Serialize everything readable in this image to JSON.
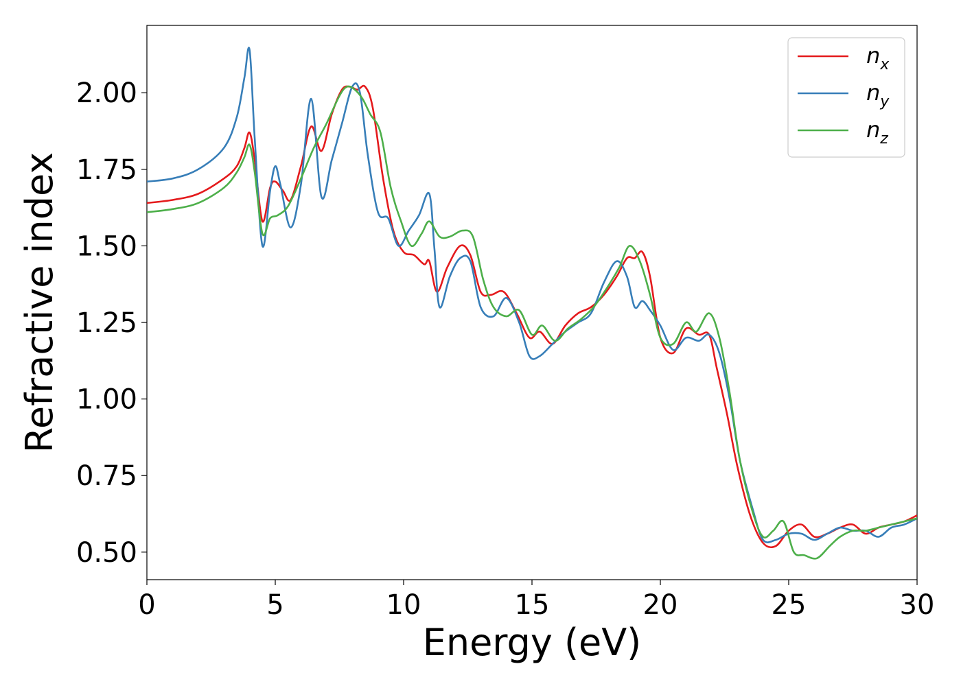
{
  "chart_data": {
    "type": "line",
    "xlabel": "Energy (eV)",
    "ylabel": "Refractive index",
    "xlim": [
      0,
      30
    ],
    "ylim": [
      0.41,
      2.22
    ],
    "xticks": [
      0,
      5,
      10,
      15,
      20,
      25,
      30
    ],
    "yticks": [
      0.5,
      0.75,
      1.0,
      1.25,
      1.5,
      1.75,
      2.0
    ],
    "ytick_labels": [
      "0.50",
      "0.75",
      "1.00",
      "1.25",
      "1.50",
      "1.75",
      "2.00"
    ],
    "grid": false,
    "legend_position": "top-right",
    "series": [
      {
        "name": "n_x",
        "legend_base": "n",
        "legend_sub": "x",
        "color": "#e41a1c",
        "x": [
          0,
          1,
          2,
          3,
          3.5,
          3.8,
          4.0,
          4.2,
          4.5,
          4.8,
          5.0,
          5.3,
          5.6,
          6.0,
          6.4,
          6.8,
          7.2,
          7.6,
          7.9,
          8.2,
          8.5,
          8.8,
          9.2,
          9.6,
          10.0,
          10.4,
          10.8,
          11.0,
          11.3,
          11.7,
          12.2,
          12.6,
          13.0,
          13.4,
          13.9,
          14.4,
          14.9,
          15.3,
          15.8,
          16.3,
          16.8,
          17.3,
          17.8,
          18.3,
          18.7,
          19.0,
          19.3,
          19.6,
          20.0,
          20.5,
          21.0,
          21.5,
          21.9,
          22.2,
          22.6,
          23.0,
          23.5,
          24.0,
          24.5,
          25.0,
          25.5,
          26.0,
          26.5,
          27.0,
          27.5,
          28.0,
          28.5,
          29.0,
          29.5,
          30.0
        ],
        "y": [
          1.64,
          1.65,
          1.67,
          1.72,
          1.76,
          1.82,
          1.87,
          1.78,
          1.58,
          1.69,
          1.71,
          1.68,
          1.65,
          1.76,
          1.89,
          1.81,
          1.93,
          2.01,
          2.02,
          2.01,
          2.02,
          1.95,
          1.72,
          1.55,
          1.48,
          1.47,
          1.44,
          1.45,
          1.35,
          1.43,
          1.5,
          1.47,
          1.35,
          1.34,
          1.35,
          1.28,
          1.2,
          1.22,
          1.18,
          1.24,
          1.28,
          1.3,
          1.34,
          1.4,
          1.46,
          1.46,
          1.48,
          1.4,
          1.2,
          1.15,
          1.23,
          1.21,
          1.21,
          1.1,
          0.95,
          0.78,
          0.62,
          0.53,
          0.52,
          0.57,
          0.59,
          0.55,
          0.56,
          0.58,
          0.59,
          0.56,
          0.58,
          0.59,
          0.6,
          0.62
        ]
      },
      {
        "name": "n_y",
        "legend_base": "n",
        "legend_sub": "y",
        "color": "#377eb8",
        "x": [
          0,
          1,
          2,
          3,
          3.5,
          3.8,
          4.0,
          4.2,
          4.5,
          4.8,
          5.0,
          5.2,
          5.6,
          6.0,
          6.4,
          6.8,
          7.2,
          7.6,
          8.0,
          8.3,
          8.6,
          9.0,
          9.4,
          9.8,
          10.2,
          10.6,
          11.0,
          11.2,
          11.4,
          11.8,
          12.2,
          12.6,
          13.0,
          13.5,
          14.0,
          14.5,
          14.9,
          15.3,
          15.8,
          16.3,
          16.8,
          17.3,
          17.8,
          18.3,
          18.7,
          19.0,
          19.3,
          19.6,
          20.0,
          20.5,
          21.0,
          21.5,
          21.9,
          22.3,
          22.7,
          23.1,
          23.6,
          24.0,
          24.5,
          25.0,
          25.5,
          26.0,
          26.5,
          27.0,
          27.5,
          28.0,
          28.5,
          29.0,
          29.5,
          30.0
        ],
        "y": [
          1.71,
          1.72,
          1.75,
          1.82,
          1.92,
          2.05,
          2.14,
          1.85,
          1.5,
          1.68,
          1.76,
          1.7,
          1.56,
          1.7,
          1.98,
          1.66,
          1.78,
          1.9,
          2.02,
          2.0,
          1.8,
          1.61,
          1.59,
          1.5,
          1.55,
          1.6,
          1.67,
          1.49,
          1.3,
          1.4,
          1.46,
          1.45,
          1.3,
          1.27,
          1.33,
          1.25,
          1.14,
          1.14,
          1.18,
          1.22,
          1.25,
          1.28,
          1.38,
          1.45,
          1.4,
          1.3,
          1.32,
          1.29,
          1.24,
          1.16,
          1.2,
          1.19,
          1.21,
          1.15,
          1.0,
          0.8,
          0.64,
          0.54,
          0.54,
          0.56,
          0.56,
          0.54,
          0.56,
          0.58,
          0.57,
          0.57,
          0.55,
          0.58,
          0.59,
          0.61
        ]
      },
      {
        "name": "n_z",
        "legend_base": "n",
        "legend_sub": "z",
        "color": "#4daf4a",
        "x": [
          0,
          1,
          2,
          3,
          3.5,
          3.8,
          4.0,
          4.2,
          4.5,
          4.8,
          5.1,
          5.5,
          6.0,
          6.5,
          7.0,
          7.5,
          7.8,
          8.1,
          8.4,
          8.7,
          9.1,
          9.5,
          9.9,
          10.3,
          10.7,
          11.0,
          11.4,
          11.8,
          12.3,
          12.7,
          13.1,
          13.5,
          14.0,
          14.5,
          15.0,
          15.4,
          15.9,
          16.4,
          16.9,
          17.4,
          17.9,
          18.4,
          18.8,
          19.2,
          19.6,
          20.0,
          20.5,
          21.0,
          21.4,
          21.9,
          22.3,
          22.7,
          23.1,
          23.6,
          24.0,
          24.4,
          24.8,
          25.2,
          25.6,
          26.1,
          26.6,
          27.0,
          27.5,
          28.0,
          28.5,
          29.0,
          29.5,
          30.0
        ],
        "y": [
          1.61,
          1.62,
          1.64,
          1.69,
          1.74,
          1.79,
          1.83,
          1.74,
          1.54,
          1.59,
          1.6,
          1.63,
          1.72,
          1.82,
          1.9,
          1.99,
          2.02,
          2.01,
          1.98,
          1.93,
          1.87,
          1.69,
          1.58,
          1.5,
          1.54,
          1.58,
          1.53,
          1.53,
          1.55,
          1.53,
          1.39,
          1.3,
          1.27,
          1.29,
          1.21,
          1.24,
          1.19,
          1.23,
          1.26,
          1.3,
          1.36,
          1.43,
          1.5,
          1.45,
          1.34,
          1.2,
          1.18,
          1.25,
          1.22,
          1.28,
          1.2,
          1.02,
          0.8,
          0.63,
          0.55,
          0.57,
          0.6,
          0.5,
          0.49,
          0.48,
          0.52,
          0.55,
          0.57,
          0.57,
          0.58,
          0.59,
          0.6,
          0.61
        ]
      }
    ]
  }
}
